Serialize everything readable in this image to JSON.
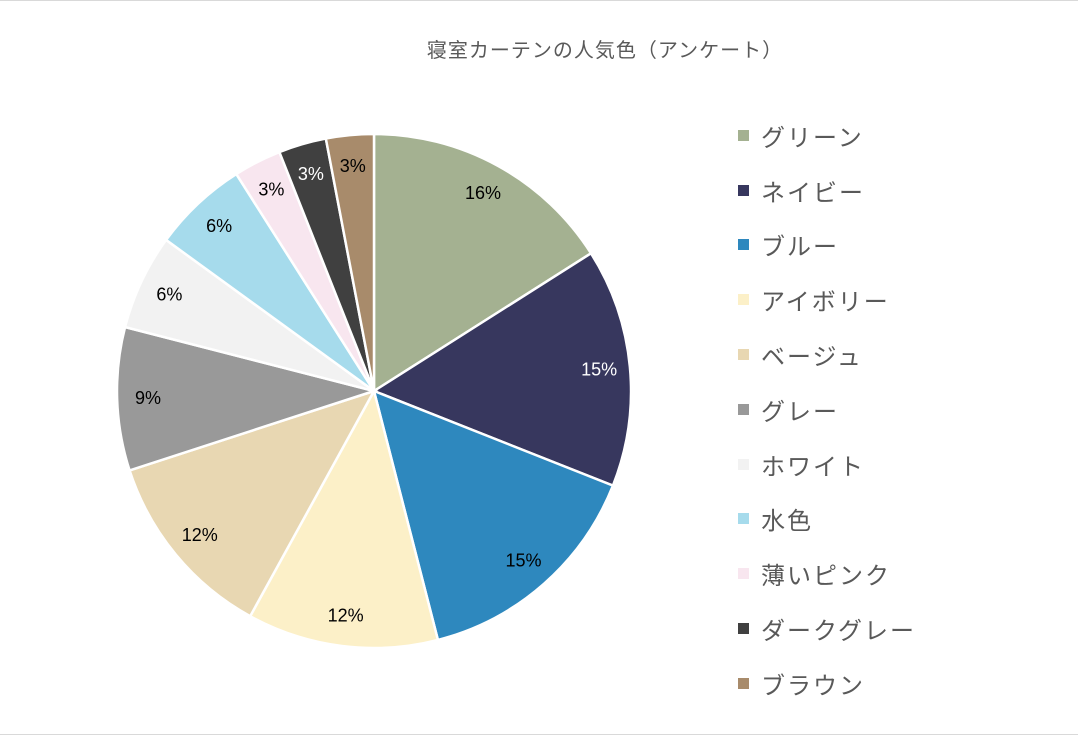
{
  "chart_data": {
    "type": "pie",
    "title": "寝室カーテンの人気色（アンケート）",
    "categories": [
      "グリーン",
      "ネイビー",
      "ブルー",
      "アイボリー",
      "ベージュ",
      "グレー",
      "ホワイト",
      "水色",
      "薄いピンク",
      "ダークグレー",
      "ブラウン"
    ],
    "values": [
      16,
      15,
      15,
      12,
      12,
      9,
      6,
      6,
      3,
      3,
      3
    ],
    "data_labels": [
      "16%",
      "15%",
      "15%",
      "12%",
      "12%",
      "9%",
      "6%",
      "6%",
      "3%",
      "3%",
      "3%"
    ],
    "colors": [
      "#A4B191",
      "#37375E",
      "#2E88BE",
      "#FCF0C8",
      "#E8D7B2",
      "#999999",
      "#F2F2F2",
      "#A6DBEC",
      "#F8E6EF",
      "#404040",
      "#A88B6B"
    ],
    "label_colors": [
      "#000000",
      "#FFFFFF",
      "#000000",
      "#000000",
      "#000000",
      "#000000",
      "#000000",
      "#000000",
      "#000000",
      "#FFFFFF",
      "#000000"
    ],
    "legend_position": "right",
    "start_angle_deg": 0,
    "direction": "clockwise"
  }
}
